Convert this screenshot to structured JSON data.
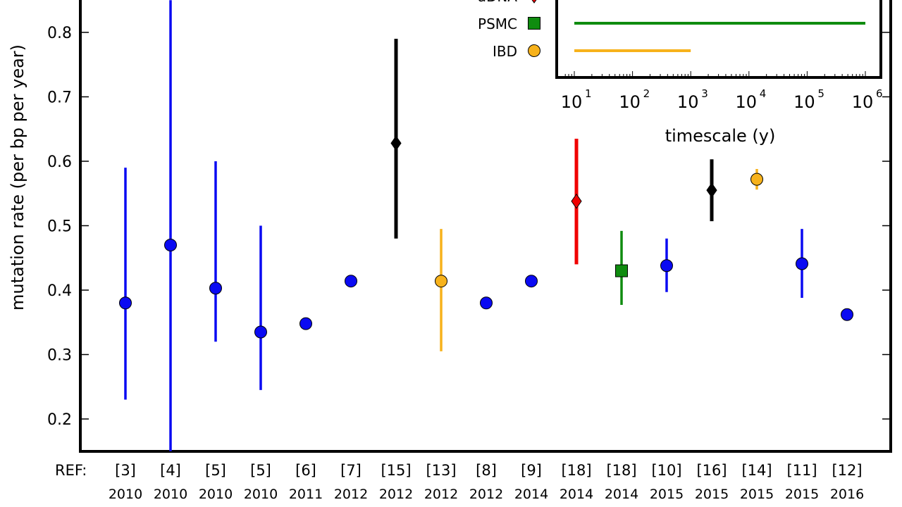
{
  "chart_data": {
    "type": "scatter",
    "ylabel": "mutation rate (per bp per year)",
    "ylim": [
      0.15,
      0.85
    ],
    "yticks": [
      0.2,
      0.3,
      0.4,
      0.5,
      0.6,
      0.7,
      0.8
    ],
    "ytick_labels": [
      "0.2",
      "0.3",
      "0.4",
      "0.5",
      "0.6",
      "0.7",
      "0.8"
    ],
    "ref_axis_label": "REF:",
    "points": [
      {
        "ref": "[3]",
        "year": "2010",
        "method": "pedigree",
        "value": 0.38,
        "low": 0.23,
        "high": 0.59
      },
      {
        "ref": "[4]",
        "year": "2010",
        "method": "pedigree",
        "value": 0.47,
        "low": 0.15,
        "high": 0.85
      },
      {
        "ref": "[5]",
        "year": "2010",
        "method": "pedigree",
        "value": 0.403,
        "low": 0.32,
        "high": 0.6
      },
      {
        "ref": "[5]",
        "year": "2010",
        "method": "pedigree",
        "value": 0.335,
        "low": 0.245,
        "high": 0.5
      },
      {
        "ref": "[6]",
        "year": "2011",
        "method": "pedigree",
        "value": 0.348,
        "low": null,
        "high": null
      },
      {
        "ref": "[7]",
        "year": "2012",
        "method": "pedigree",
        "value": 0.414,
        "low": null,
        "high": null
      },
      {
        "ref": "[15]",
        "year": "2012",
        "method": "other",
        "value": 0.628,
        "low": 0.48,
        "high": 0.79
      },
      {
        "ref": "[13]",
        "year": "2012",
        "method": "IBD",
        "value": 0.414,
        "low": 0.305,
        "high": 0.495
      },
      {
        "ref": "[8]",
        "year": "2012",
        "method": "pedigree",
        "value": 0.38,
        "low": null,
        "high": null
      },
      {
        "ref": "[9]",
        "year": "2014",
        "method": "pedigree",
        "value": 0.414,
        "low": null,
        "high": null
      },
      {
        "ref": "[18]",
        "year": "2014",
        "method": "aDNA",
        "value": 0.538,
        "low": 0.44,
        "high": 0.635
      },
      {
        "ref": "[18]",
        "year": "2014",
        "method": "PSMC",
        "value": 0.43,
        "low": 0.377,
        "high": 0.492
      },
      {
        "ref": "[10]",
        "year": "2015",
        "method": "pedigree",
        "value": 0.438,
        "low": 0.397,
        "high": 0.48
      },
      {
        "ref": "[16]",
        "year": "2015",
        "method": "other",
        "value": 0.555,
        "low": 0.507,
        "high": 0.603
      },
      {
        "ref": "[14]",
        "year": "2015",
        "method": "IBD",
        "value": 0.572,
        "low": 0.556,
        "high": 0.588
      },
      {
        "ref": "[11]",
        "year": "2015",
        "method": "pedigree",
        "value": 0.441,
        "low": 0.388,
        "high": 0.495
      },
      {
        "ref": "[12]",
        "year": "2016",
        "method": "pedigree",
        "value": 0.362,
        "low": null,
        "high": null
      }
    ],
    "colors": {
      "pedigree": "#0a0af2",
      "other": "#000000",
      "IBD": "#f7b21b",
      "aDNA": "#f00000",
      "PSMC": "#0f8c0f"
    },
    "legend": [
      {
        "label": "aDNA",
        "method": "aDNA",
        "marker": "diamond"
      },
      {
        "label": "PSMC",
        "method": "PSMC",
        "marker": "square"
      },
      {
        "label": "IBD",
        "method": "IBD",
        "marker": "circle"
      }
    ],
    "inset": {
      "xlabel": "timescale (y)",
      "xscale": "log",
      "xlim_exp": [
        0.8,
        6.3
      ],
      "ticks": [
        {
          "base": "10",
          "exp": "1",
          "value_exp": 1
        },
        {
          "base": "10",
          "exp": "2",
          "value_exp": 2
        },
        {
          "base": "10",
          "exp": "3",
          "value_exp": 3
        },
        {
          "base": "10",
          "exp": "4",
          "value_exp": 4
        },
        {
          "base": "10",
          "exp": "5",
          "value_exp": 5
        },
        {
          "base": "10",
          "exp": "6",
          "value_exp": 6
        }
      ],
      "ranges": [
        {
          "method": "PSMC",
          "from_exp": 1,
          "to_exp": 6
        },
        {
          "method": "IBD",
          "from_exp": 1,
          "to_exp": 3
        }
      ]
    }
  }
}
